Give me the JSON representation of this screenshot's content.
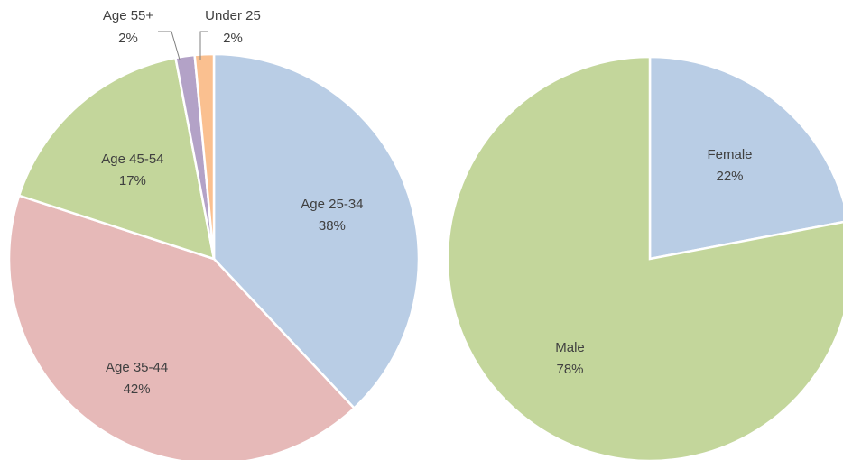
{
  "chart_data": [
    {
      "type": "pie",
      "title": "",
      "start_angle_deg": 0,
      "direction": "clockwise",
      "slices": [
        {
          "label": "Age 25-34",
          "value": 38,
          "value_label": "38%",
          "color": "#b9cde5"
        },
        {
          "label": "Age 35-44",
          "value": 42,
          "value_label": "42%",
          "color": "#e6b9b8"
        },
        {
          "label": "Age 45-54",
          "value": 17,
          "value_label": "17%",
          "color": "#c3d69b"
        },
        {
          "label": "Age 55+",
          "value": 1.5,
          "value_label": "2%",
          "color": "#b3a2c7"
        },
        {
          "label": "Under 25",
          "value": 1.5,
          "value_label": "2%",
          "color": "#fac090"
        }
      ]
    },
    {
      "type": "pie",
      "title": "",
      "start_angle_deg": 0,
      "direction": "clockwise",
      "slices": [
        {
          "label": "Female",
          "value": 22,
          "value_label": "22%",
          "color": "#b9cde5"
        },
        {
          "label": "Male",
          "value": 78,
          "value_label": "78%",
          "color": "#c3d69b"
        }
      ]
    }
  ]
}
